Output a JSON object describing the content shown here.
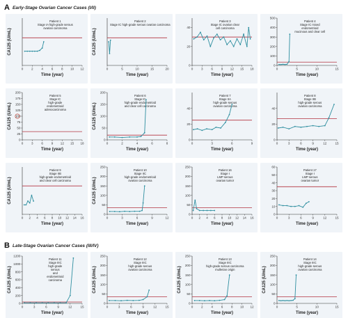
{
  "sections": [
    {
      "letter": "A",
      "title": "Early-Stage Ovarian Cancer Cases (I/II)"
    },
    {
      "letter": "B",
      "title": "Late-Stage Ovarian Cancer Cases (III/IV)"
    }
  ],
  "chart_data": [
    {
      "type": "line",
      "section": "A",
      "annotation": [
        "Patient 1",
        "Stage IA high-grade serous",
        "ovarian carcinoma"
      ],
      "xlabel": "Time (year)",
      "ylabel": "CA125 (U/mL)",
      "xlim": [
        0,
        12
      ],
      "xticks": [
        0,
        2,
        4,
        6,
        8,
        10,
        12
      ],
      "ylim": [
        0,
        60
      ],
      "yticks": [],
      "threshold": 35,
      "x": [
        0.5,
        1,
        1.5,
        2,
        2.5,
        3,
        3.5,
        4,
        4.3
      ],
      "y": [
        18,
        18,
        18,
        18,
        18,
        18,
        19,
        22,
        30
      ]
    },
    {
      "type": "line",
      "section": "A",
      "annotation": [
        "Patient 2",
        "Stage IC high-grade serous ovarian carcinoma"
      ],
      "xlabel": "Time (year)",
      "ylabel": "CA125 (U/mL)",
      "xlim": [
        0,
        20
      ],
      "xticks": [
        0,
        5,
        10,
        15,
        20
      ],
      "ylim": [
        0,
        60
      ],
      "yticks": [],
      "threshold": 35,
      "x": [
        0.5,
        0.8,
        1.1
      ],
      "y": [
        30,
        15,
        32
      ]
    },
    {
      "type": "line",
      "section": "A",
      "annotation": [
        "Patient 3",
        "Stage IC ovarian clear",
        "cell carcinoma"
      ],
      "xlabel": "Time (year)",
      "ylabel": "",
      "xlim": [
        0,
        18
      ],
      "xticks": [
        0,
        3,
        6,
        9,
        12,
        15,
        18
      ],
      "ylim": [
        0,
        50
      ],
      "yticks": [
        0,
        20,
        40
      ],
      "threshold": 30,
      "x": [
        0.5,
        1.5,
        2.5,
        3.5,
        4.5,
        5.5,
        6.5,
        7.5,
        8.5,
        9.5,
        10.5,
        11.5,
        12.5,
        13.5,
        14.5,
        15.5,
        16.5,
        17,
        17.5
      ],
      "y": [
        28,
        30,
        35,
        27,
        31,
        20,
        29,
        33,
        27,
        30,
        22,
        26,
        20,
        28,
        22,
        33,
        20,
        40,
        28
      ]
    },
    {
      "type": "line",
      "section": "A",
      "annotation": [
        "Patient 4",
        "Stage IC mixed",
        "endometrioid",
        "mucinous and clear cell"
      ],
      "xlabel": "Time (year)",
      "ylabel": "",
      "xlim": [
        0,
        15
      ],
      "xticks": [
        0,
        5,
        10,
        15
      ],
      "ylim": [
        0,
        500
      ],
      "yticks": [
        0,
        100,
        200,
        300,
        400,
        500
      ],
      "threshold": 35,
      "x": [
        0.5,
        1,
        1.5,
        2,
        2.5,
        3,
        3.2
      ],
      "y": [
        10,
        10,
        12,
        10,
        12,
        40,
        330
      ]
    },
    {
      "type": "line",
      "section": "A",
      "annotation": [
        "Patient 5",
        "Stage IC",
        "high-grade",
        "endometrioid",
        "adenocarcinoma"
      ],
      "xlabel": "Time (year)",
      "ylabel": "CA125 (U/mL)",
      "xlim": [
        0,
        18
      ],
      "xticks": [
        0,
        3,
        6,
        9,
        12,
        15,
        18
      ],
      "ylim": [
        0,
        200
      ],
      "yticks": [
        0,
        25,
        50,
        75,
        100,
        125,
        150,
        175,
        200
      ],
      "threshold": 35,
      "x": [],
      "y": []
    },
    {
      "type": "line",
      "section": "A",
      "annotation": [
        "Patient 6",
        "Stage IC",
        "high-grade endometrioid",
        "and clear cell carcinoma"
      ],
      "xlabel": "Time (year)",
      "ylabel": "CA125 (U/mL)",
      "xlim": [
        0,
        8
      ],
      "xticks": [
        0,
        2,
        4,
        6,
        8
      ],
      "ylim": [
        0,
        200
      ],
      "yticks": [
        0,
        50,
        100,
        150,
        200
      ],
      "threshold": 20,
      "x": [
        0.3,
        1,
        2,
        3,
        4,
        4.5,
        5,
        5.2
      ],
      "y": [
        12,
        12,
        10,
        12,
        12,
        14,
        30,
        170
      ]
    },
    {
      "type": "line",
      "section": "A",
      "annotation": [
        "Patient 7",
        "Stage IIA",
        "high-grade serous",
        "ovarian carcinoma"
      ],
      "xlabel": "Time (year)",
      "ylabel": "",
      "xlim": [
        0,
        9
      ],
      "xticks": [
        0,
        3,
        6,
        9
      ],
      "ylim": [
        0,
        60
      ],
      "yticks": [
        0,
        20,
        40
      ],
      "threshold": 25,
      "x": [
        0.2,
        0.8,
        1.5,
        2.2,
        3,
        3.6,
        4.3,
        5,
        5.6,
        6
      ],
      "y": [
        13,
        14,
        12,
        14,
        13,
        16,
        15,
        22,
        32,
        45
      ]
    },
    {
      "type": "line",
      "section": "A",
      "annotation": [
        "Patient 8",
        "Stage IIB",
        "high-grade serous",
        "ovarian carcinoma"
      ],
      "xlabel": "Time (year)",
      "ylabel": "",
      "xlim": [
        0,
        15
      ],
      "xticks": [
        0,
        3,
        6,
        9,
        12,
        15
      ],
      "ylim": [
        0,
        60
      ],
      "yticks": [
        0,
        20,
        40
      ],
      "threshold": 27,
      "x": [
        0.3,
        1.5,
        3,
        4.5,
        6,
        7.5,
        9,
        10.5,
        12,
        13,
        14.3
      ],
      "y": [
        15,
        16,
        14,
        17,
        16,
        17,
        18,
        17,
        18,
        28,
        45
      ]
    },
    {
      "type": "line",
      "section": "A",
      "annotation": [
        "Patient 9",
        "Stage IIB",
        "high-grade endometrioid",
        "and clear cell carcinoma"
      ],
      "xlabel": "Time (year)",
      "ylabel": "CA125 (U/mL)",
      "xlim": [
        0,
        16
      ],
      "xticks": [
        0,
        2,
        4,
        6,
        8,
        10,
        12,
        14,
        16
      ],
      "ylim": [
        0,
        50
      ],
      "yticks": [],
      "threshold": 30,
      "x": [
        0.5,
        1,
        1.5,
        2,
        2.5,
        3
      ],
      "y": [
        10,
        10,
        14,
        12,
        20,
        14
      ]
    },
    {
      "type": "line",
      "section": "A",
      "annotation": [
        "Patient 10",
        "Stage IIC",
        "high-grade endometrioid",
        "ovarian carcinoma"
      ],
      "xlabel": "Time (year)",
      "ylabel": "CA125 (U/mL)",
      "xlim": [
        0,
        12
      ],
      "xticks": [
        0,
        3,
        6,
        9,
        12
      ],
      "ylim": [
        0,
        250
      ],
      "yticks": [
        0,
        50,
        100,
        150,
        200,
        250
      ],
      "threshold": 35,
      "x": [
        0.5,
        1.5,
        2.5,
        3.5,
        4.5,
        5.5,
        6.5,
        7,
        7.2,
        7.5
      ],
      "y": [
        15,
        15,
        14,
        16,
        15,
        16,
        16,
        20,
        60,
        150
      ]
    },
    {
      "type": "line",
      "section": "A",
      "annotation": [
        "Patient 16",
        "Stage I",
        "LMP serous",
        "ovarian tumor"
      ],
      "xlabel": "Time (year)",
      "ylabel": "",
      "xlim": [
        0,
        16
      ],
      "xticks": [
        0,
        2,
        4,
        6,
        8,
        10,
        12,
        14,
        16
      ],
      "ylim": [
        0,
        250
      ],
      "yticks": [
        0,
        50,
        100,
        150,
        200,
        250
      ],
      "threshold": 35,
      "x": [
        0.3,
        0.8,
        1.2,
        2,
        3,
        4,
        5,
        6
      ],
      "y": [
        20,
        75,
        30,
        20,
        20,
        20,
        20,
        20
      ]
    },
    {
      "type": "line",
      "section": "A",
      "annotation": [
        "Patient 17",
        "Stage I",
        "LMP serous",
        "ovarian tumor"
      ],
      "xlabel": "Time (year)",
      "ylabel": "",
      "xlim": [
        0,
        15
      ],
      "xticks": [
        0,
        3,
        6,
        9,
        12,
        15
      ],
      "ylim": [
        0,
        60
      ],
      "yticks": [
        0,
        10,
        20,
        30,
        40,
        50,
        60
      ],
      "threshold": 35,
      "x": [
        0.5,
        1.5,
        2.5,
        3.5,
        4.5,
        5.5,
        6.5,
        7.3,
        8
      ],
      "y": [
        12,
        11,
        11,
        10,
        10,
        11,
        9,
        14,
        16
      ]
    },
    {
      "type": "line",
      "section": "B",
      "annotation": [
        "Patient 11",
        "Stage IIIC",
        "high-grade",
        "serous",
        "and",
        "endometrioid",
        "carcinoma"
      ],
      "xlabel": "Time (year)",
      "ylabel": "CA125 (U/mL)",
      "xlim": [
        0,
        15
      ],
      "xticks": [
        0,
        3,
        6,
        9,
        12,
        15
      ],
      "ylim": [
        0,
        1200
      ],
      "yticks": [
        0,
        200,
        400,
        600,
        800,
        1000,
        1200
      ],
      "threshold": 35,
      "x": [
        0.5,
        2,
        3.5,
        5,
        6.5,
        8,
        9.5,
        11,
        12,
        12.8
      ],
      "y": [
        15,
        15,
        14,
        15,
        15,
        14,
        15,
        16,
        200,
        1150
      ]
    },
    {
      "type": "line",
      "section": "B",
      "annotation": [
        "Patient 12",
        "Stage IIIC",
        "high-grade serous",
        "ovarian carcinoma"
      ],
      "xlabel": "Time (year)",
      "ylabel": "CA125 (U/mL)",
      "xlim": [
        0,
        15
      ],
      "xticks": [
        0,
        3,
        6,
        9,
        12,
        15
      ],
      "ylim": [
        0,
        250
      ],
      "yticks": [
        0,
        50,
        100,
        150,
        200,
        250
      ],
      "threshold": 35,
      "x": [
        0.5,
        2,
        3.5,
        5,
        6.5,
        8,
        9,
        10,
        10.5
      ],
      "y": [
        15,
        15,
        14,
        16,
        15,
        16,
        20,
        35,
        70
      ]
    },
    {
      "type": "line",
      "section": "B",
      "annotation": [
        "Patient 13",
        "Stage IIIC",
        "high-grade serous carcinoma",
        "mullerian origin"
      ],
      "xlabel": "Time (year)",
      "ylabel": "CA125 (U/mL)",
      "xlim": [
        0,
        12
      ],
      "xticks": [
        0,
        2,
        4,
        6,
        8,
        10,
        12
      ],
      "ylim": [
        0,
        250
      ],
      "yticks": [
        0,
        50,
        100,
        150,
        200,
        250
      ],
      "threshold": 35,
      "x": [
        0.5,
        1.5,
        2.5,
        3.5,
        4.5,
        5.5,
        6.5,
        7,
        7.5
      ],
      "y": [
        15,
        15,
        14,
        15,
        14,
        16,
        20,
        40,
        150
      ]
    },
    {
      "type": "line",
      "section": "B",
      "annotation": [
        "Patient 14",
        "Stage IIIC",
        "high-grade serous",
        "ovarian carcinoma"
      ],
      "xlabel": "Time (year)",
      "ylabel": "CA125 (U/mL)",
      "xlim": [
        0,
        15
      ],
      "xticks": [
        0,
        5,
        10,
        15
      ],
      "ylim": [
        0,
        250
      ],
      "yticks": [
        0,
        50,
        100,
        150,
        200,
        250
      ],
      "threshold": 35,
      "x": [
        0.5,
        1,
        1.5,
        2,
        2.5,
        3,
        3.5,
        4,
        4.5,
        4.8
      ],
      "y": [
        15,
        14,
        15,
        14,
        15,
        14,
        15,
        16,
        25,
        150
      ]
    }
  ]
}
